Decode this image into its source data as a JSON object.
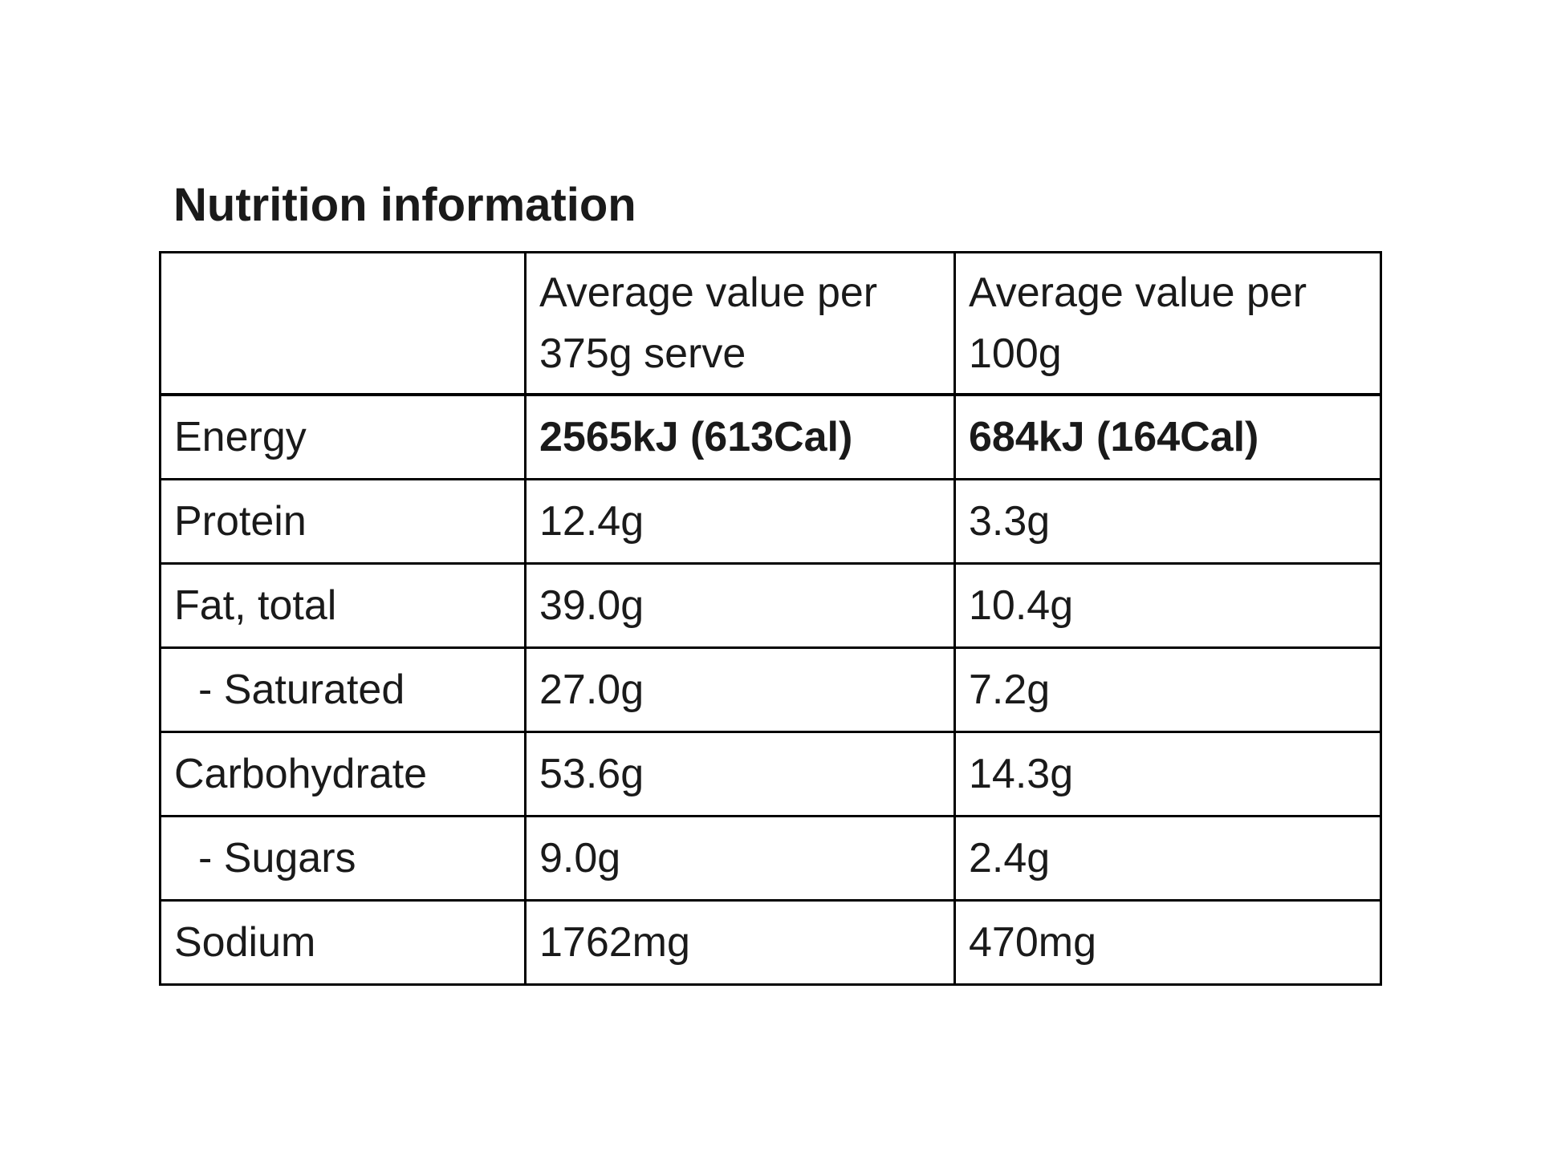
{
  "page": {
    "title": "Nutrition information"
  },
  "colors": {
    "text": "#1a1a1a",
    "border": "#000000",
    "background": "#ffffff"
  },
  "table": {
    "columns": [
      "",
      "Average value per 375g serve",
      "Average value per 100g"
    ],
    "rows": [
      {
        "label": "Energy",
        "per_serve": "2565kJ (613Cal)",
        "per_100g": "684kJ (164Cal)",
        "bold": true,
        "indent": false
      },
      {
        "label": "Protein",
        "per_serve": "12.4g",
        "per_100g": "3.3g",
        "bold": false,
        "indent": false
      },
      {
        "label": "Fat, total",
        "per_serve": "39.0g",
        "per_100g": "10.4g",
        "bold": false,
        "indent": false
      },
      {
        "label": "- Saturated",
        "per_serve": "27.0g",
        "per_100g": "7.2g",
        "bold": false,
        "indent": true
      },
      {
        "label": "Carbohydrate",
        "per_serve": "53.6g",
        "per_100g": "14.3g",
        "bold": false,
        "indent": false
      },
      {
        "label": "- Sugars",
        "per_serve": "9.0g",
        "per_100g": "2.4g",
        "bold": false,
        "indent": true
      },
      {
        "label": "Sodium",
        "per_serve": "1762mg",
        "per_100g": "470mg",
        "bold": false,
        "indent": false
      }
    ]
  }
}
